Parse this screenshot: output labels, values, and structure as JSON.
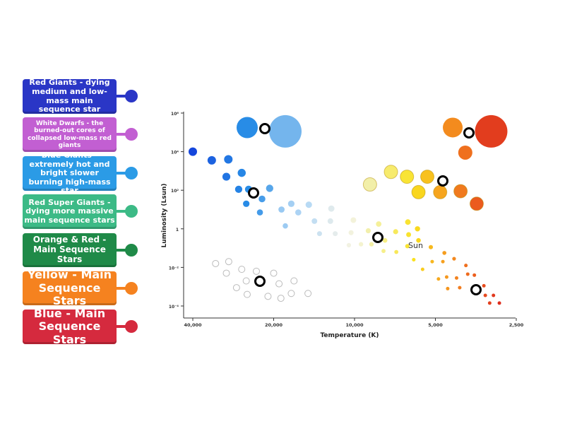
{
  "labels": [
    {
      "text": "Red Giants - dying medium and low-mass main sequence star",
      "color": "#2a36c6"
    },
    {
      "text": "White Dwarfs - the burned-out cores of collapsed low-mass red giants",
      "color": "#c25fd2"
    },
    {
      "text": "Blue Giants - extremely hot and bright slower burning high-mass star",
      "color": "#2b9be6"
    },
    {
      "text": "Red Super Giants - dying more massive main sequence stars",
      "color": "#3cba86"
    },
    {
      "text": "Orange & Red - Main Sequence Stars",
      "color": "#1f8a48"
    },
    {
      "text": "Yellow - Main Sequence Stars",
      "color": "#f5821f"
    },
    {
      "text": "Blue - Main Sequence Stars",
      "color": "#d52a3e"
    }
  ],
  "chart_data": {
    "type": "scatter",
    "xlabel": "Temperature (K)",
    "ylabel": "Luminosity (Lsun)",
    "x_scale": "log-reversed",
    "xlim": [
      40000,
      2500
    ],
    "ylim_log10": [
      -4,
      6
    ],
    "x_ticks": [
      "40,000",
      "20,000",
      "10,000",
      "5,000",
      "2,500"
    ],
    "x_tick_values": [
      40000,
      20000,
      10000,
      5000,
      2500
    ],
    "y_ticks": [
      "10⁶",
      "10⁴",
      "10²",
      "1",
      "10⁻²",
      "10⁻⁴"
    ],
    "y_tick_values": [
      6,
      4,
      2,
      0,
      -2,
      -4
    ],
    "annotation": "Sun",
    "series": [
      {
        "group": "main-sequence",
        "points": [
          [
            40000,
            4
          ],
          [
            34000,
            3.55
          ],
          [
            29500,
            3.6
          ],
          [
            30000,
            2.7
          ],
          [
            26300,
            2.9
          ],
          [
            27000,
            2.05
          ],
          [
            24800,
            2.05
          ],
          [
            20700,
            2.1
          ],
          [
            25300,
            1.3
          ],
          [
            22100,
            1.55
          ],
          [
            22500,
            0.85
          ],
          [
            18700,
            1.0
          ],
          [
            17200,
            1.3
          ],
          [
            16200,
            0.85
          ],
          [
            18100,
            0.15
          ],
          [
            14800,
            1.25
          ],
          [
            12200,
            1.05
          ],
          [
            14100,
            0.4
          ],
          [
            12300,
            0.4
          ],
          [
            13500,
            -0.25
          ],
          [
            11800,
            -0.25
          ],
          [
            10100,
            0.45
          ],
          [
            10300,
            -0.2
          ],
          [
            10500,
            -0.85
          ],
          [
            9460,
            -0.8
          ],
          [
            8890,
            -0.1
          ],
          [
            8650,
            -0.8
          ],
          [
            8130,
            0.25
          ],
          [
            7700,
            -0.6
          ],
          [
            7800,
            -1.15
          ],
          [
            7030,
            -0.15
          ],
          [
            6990,
            -1.2
          ],
          [
            6330,
            0.35
          ],
          [
            6290,
            -0.3
          ],
          [
            5830,
            0
          ],
          [
            5780,
            -0.6
          ],
          [
            6360,
            -0.9
          ],
          [
            6020,
            -1.6
          ],
          [
            5580,
            -2.1
          ],
          [
            5200,
            -0.95
          ],
          [
            5140,
            -1.7
          ],
          [
            4630,
            -1.25
          ],
          [
            4690,
            -1.7
          ],
          [
            4260,
            -1.55
          ],
          [
            4870,
            -2.6
          ],
          [
            4540,
            -2.5
          ],
          [
            4170,
            -2.55
          ],
          [
            4500,
            -3.1
          ],
          [
            4060,
            -3.05
          ],
          [
            3850,
            -1.9
          ],
          [
            3790,
            -2.35
          ],
          [
            3580,
            -2.4
          ],
          [
            3300,
            -2.95
          ],
          [
            3260,
            -3.45
          ],
          [
            3040,
            -3.45
          ],
          [
            3140,
            -3.85
          ],
          [
            2890,
            -3.85
          ]
        ]
      },
      {
        "group": "giants",
        "points": [
          [
            8760,
            2.3
          ],
          [
            7320,
            2.95
          ],
          [
            6380,
            2.7
          ],
          [
            5780,
            1.9
          ],
          [
            5360,
            2.7
          ],
          [
            4800,
            1.9
          ],
          [
            4030,
            1.95
          ],
          [
            3510,
            1.3
          ]
        ]
      },
      {
        "group": "supergiants",
        "points": [
          [
            25100,
            5.25
          ],
          [
            18100,
            5.05
          ],
          [
            4310,
            5.25
          ],
          [
            3870,
            3.95
          ],
          [
            3100,
            5.05
          ]
        ]
      },
      {
        "group": "white-dwarfs",
        "points": [
          [
            32900,
            -1.8
          ],
          [
            29400,
            -1.7
          ],
          [
            30000,
            -2.3
          ],
          [
            26300,
            -2.1
          ],
          [
            23200,
            -2.2
          ],
          [
            20000,
            -2.3
          ],
          [
            25300,
            -2.7
          ],
          [
            19100,
            -2.85
          ],
          [
            16800,
            -2.7
          ],
          [
            27500,
            -3.05
          ],
          [
            25100,
            -3.4
          ],
          [
            21000,
            -3.5
          ],
          [
            18800,
            -3.6
          ],
          [
            17200,
            -3.35
          ],
          [
            14900,
            -3.35
          ]
        ]
      }
    ]
  }
}
